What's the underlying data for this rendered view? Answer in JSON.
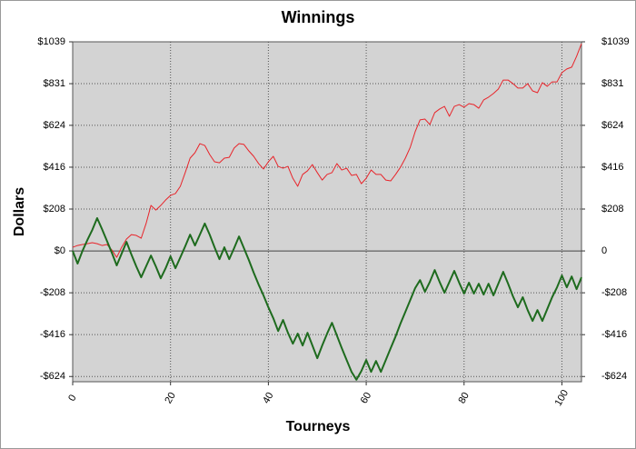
{
  "chart_data": {
    "type": "line",
    "title": "Winnings",
    "x_label": "Tourneys",
    "y_label": "Dollars",
    "x": [
      0,
      1,
      2,
      3,
      4,
      5,
      6,
      7,
      8,
      9,
      10,
      11,
      12,
      13,
      14,
      15,
      16,
      17,
      18,
      19,
      20,
      21,
      22,
      23,
      24,
      25,
      26,
      27,
      28,
      29,
      30,
      31,
      32,
      33,
      34,
      35,
      36,
      37,
      38,
      39,
      40,
      41,
      42,
      43,
      44,
      45,
      46,
      47,
      48,
      49,
      50,
      51,
      52,
      53,
      54,
      55,
      56,
      57,
      58,
      59,
      60,
      61,
      62,
      63,
      64,
      65,
      66,
      67,
      68,
      69,
      70,
      71,
      72,
      73,
      74,
      75,
      76,
      77,
      78,
      79,
      80,
      81,
      82,
      83,
      84,
      85,
      86,
      87,
      88,
      89,
      90,
      91,
      92,
      93,
      94,
      95,
      96,
      97,
      98,
      99,
      100,
      101,
      102,
      103,
      104
    ],
    "series": [
      {
        "color": "#e8242a",
        "width": 1,
        "values": [
          18,
          27,
          32,
          36,
          41,
          36,
          27,
          32,
          5,
          -32,
          18,
          59,
          81,
          77,
          63,
          136,
          226,
          203,
          226,
          253,
          276,
          285,
          321,
          389,
          461,
          488,
          533,
          524,
          479,
          443,
          438,
          461,
          465,
          511,
          533,
          529,
          497,
          470,
          434,
          407,
          443,
          470,
          420,
          411,
          420,
          361,
          321,
          380,
          398,
          429,
          389,
          352,
          380,
          389,
          434,
          402,
          411,
          375,
          380,
          334,
          361,
          402,
          380,
          380,
          352,
          348,
          380,
          416,
          461,
          515,
          592,
          651,
          655,
          628,
          687,
          705,
          718,
          669,
          718,
          727,
          714,
          732,
          727,
          709,
          750,
          764,
          782,
          804,
          849,
          849,
          831,
          809,
          809,
          831,
          795,
          786,
          836,
          818,
          840,
          840,
          886,
          904,
          913,
          967,
          1030
        ]
      },
      {
        "color": "#1e6b1e",
        "width": 2,
        "values": [
          0,
          -63,
          0,
          54,
          104,
          163,
          108,
          50,
          -9,
          -72,
          -14,
          45,
          -18,
          -77,
          -131,
          -77,
          -23,
          -77,
          -136,
          -86,
          -27,
          -86,
          -32,
          23,
          81,
          27,
          81,
          136,
          81,
          18,
          -41,
          18,
          -41,
          14,
          72,
          14,
          -45,
          -108,
          -167,
          -221,
          -280,
          -334,
          -398,
          -343,
          -407,
          -461,
          -411,
          -470,
          -407,
          -470,
          -533,
          -470,
          -411,
          -357,
          -420,
          -483,
          -542,
          -601,
          -640,
          -597,
          -542,
          -601,
          -547,
          -601,
          -542,
          -483,
          -425,
          -361,
          -303,
          -244,
          -185,
          -145,
          -203,
          -154,
          -95,
          -154,
          -208,
          -154,
          -99,
          -158,
          -212,
          -158,
          -212,
          -163,
          -217,
          -163,
          -221,
          -163,
          -104,
          -163,
          -226,
          -280,
          -230,
          -294,
          -348,
          -294,
          -348,
          -289,
          -230,
          -181,
          -122,
          -181,
          -127,
          -190,
          -131
        ]
      }
    ],
    "xlim": [
      0,
      104
    ],
    "xticks": [
      0,
      20,
      40,
      60,
      80,
      100
    ],
    "ylim": [
      -650,
      1039
    ],
    "yticks": [
      {
        "value": 1039,
        "label": "$1039"
      },
      {
        "value": 831,
        "label": "$831"
      },
      {
        "value": 624,
        "label": "$624"
      },
      {
        "value": 416,
        "label": "$416"
      },
      {
        "value": 208,
        "label": "$208"
      },
      {
        "value": 0,
        "label": "$0"
      },
      {
        "value": -208,
        "label": "-$208"
      },
      {
        "value": -416,
        "label": "-$416"
      },
      {
        "value": -624,
        "label": "-$624"
      }
    ],
    "y2lim": [
      -650,
      1039
    ],
    "y2ticks": [
      {
        "value": 1039,
        "label": "$1039"
      },
      {
        "value": 831,
        "label": "$831"
      },
      {
        "value": 624,
        "label": "$624"
      },
      {
        "value": 416,
        "label": "$416"
      },
      {
        "value": 208,
        "label": "$208"
      },
      0,
      {
        "value": -208,
        "label": "-$208"
      },
      {
        "value": -416,
        "label": "-$416"
      },
      {
        "value": -624,
        "label": "-$624"
      }
    ],
    "grid": true
  }
}
